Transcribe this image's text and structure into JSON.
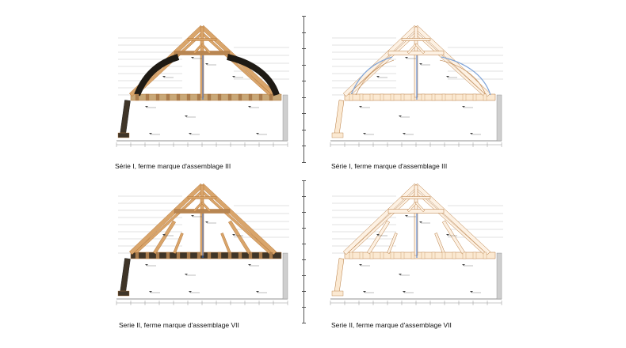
{
  "panels": [
    {
      "id": "p1",
      "caption": "Série I, ferme marque d'assemblage III",
      "variant": "photo-arch"
    },
    {
      "id": "p2",
      "caption": "Série I, ferme marque d'assemblage III",
      "variant": "line-arch"
    },
    {
      "id": "p3",
      "caption": "Serie II, ferme marque d'assemblage VII",
      "variant": "photo-truss"
    },
    {
      "id": "p4",
      "caption": "Serie II, ferme marque d'assemblage VII",
      "variant": "line-truss"
    }
  ],
  "colors": {
    "timber_light": "#d9a56b",
    "timber_outline": "#b5773a",
    "timber_dark": "#3f3528",
    "wall": "#cfcfcf",
    "wall_edge": "#888888",
    "line": "#222222",
    "blue_marker": "#2f6fd6",
    "arc_blue": "#7fa4d8"
  }
}
